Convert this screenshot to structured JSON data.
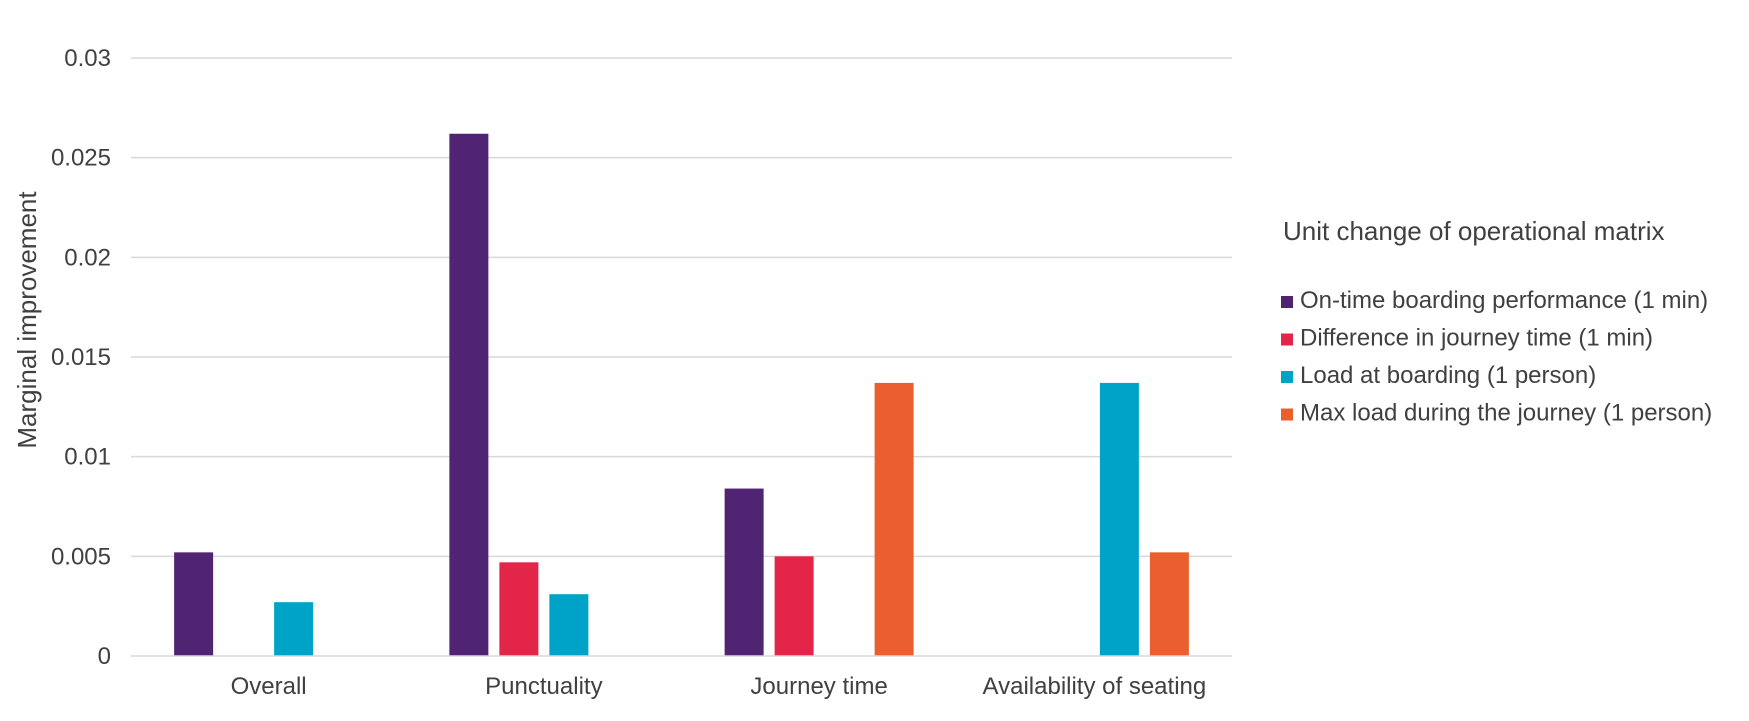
{
  "chart_data": {
    "type": "bar",
    "title": "",
    "xlabel": "",
    "ylabel": "Marginal improvement",
    "ylim": [
      0,
      0.03
    ],
    "yticks": [
      "0",
      "0.005",
      "0.01",
      "0.015",
      "0.02",
      "0.025",
      "0.03"
    ],
    "grid": true,
    "legend_position": "right",
    "legend_title": "Unit change of operational matrix",
    "categories": [
      "Overall",
      "Punctuality",
      "Journey time",
      "Availability of seating"
    ],
    "series": [
      {
        "name": "On-time boarding performance (1 min)",
        "color": "#512373",
        "values": [
          0.0052,
          0.0262,
          0.0084,
          null
        ]
      },
      {
        "name": "Difference in journey time (1 min)",
        "color": "#e4254a",
        "values": [
          null,
          0.0047,
          0.005,
          null
        ]
      },
      {
        "name": "Load at boarding (1 person)",
        "color": "#00a3c8",
        "values": [
          0.0027,
          0.0031,
          null,
          0.0137
        ]
      },
      {
        "name": "Max load during the journey (1 person)",
        "color": "#ea5f2d",
        "values": [
          null,
          null,
          0.0137,
          0.0052
        ]
      }
    ]
  }
}
